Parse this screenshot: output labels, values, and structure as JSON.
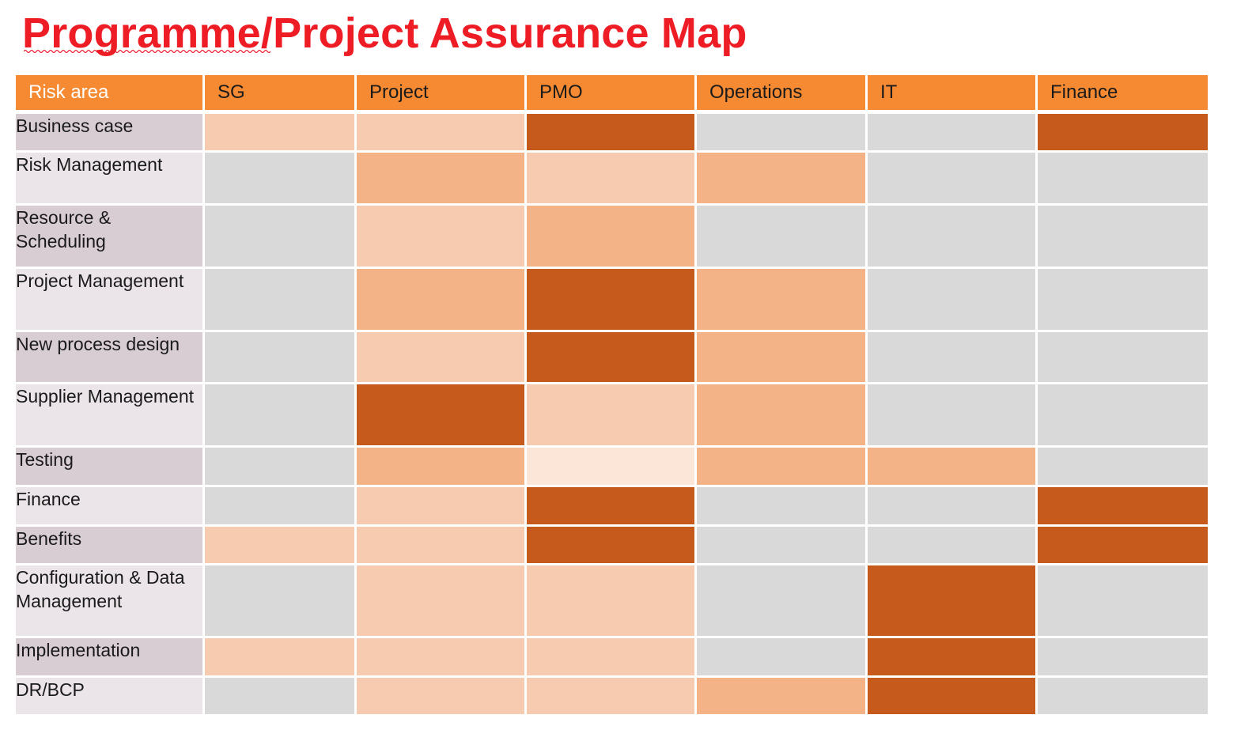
{
  "title": "Programme/Project Assurance Map",
  "header": {
    "risk_area": "Risk area",
    "columns": [
      "SG",
      "Project",
      "PMO",
      "Operations",
      "IT",
      "Finance"
    ]
  },
  "legend_colors": {
    "none": "#d9d9d9",
    "very_light": "#fbe6d7",
    "light": "#f7cbaf",
    "medium": "#f4b386",
    "strong": "#c55a1c"
  },
  "rows": [
    {
      "label": "Business case",
      "levels": [
        2,
        2,
        4,
        0,
        0,
        4
      ]
    },
    {
      "label": "Risk Management",
      "levels": [
        0,
        3,
        2,
        3,
        0,
        0
      ]
    },
    {
      "label": "Resource & Scheduling",
      "levels": [
        0,
        2,
        3,
        0,
        0,
        0
      ]
    },
    {
      "label": "Project Management",
      "levels": [
        0,
        3,
        4,
        3,
        0,
        0
      ]
    },
    {
      "label": "New process design",
      "levels": [
        0,
        2,
        4,
        3,
        0,
        0
      ]
    },
    {
      "label": "Supplier Management",
      "levels": [
        0,
        4,
        2,
        3,
        0,
        0
      ]
    },
    {
      "label": "Testing",
      "levels": [
        0,
        3,
        1,
        3,
        3,
        0
      ]
    },
    {
      "label": "Finance",
      "levels": [
        0,
        2,
        4,
        0,
        0,
        4
      ]
    },
    {
      "label": "Benefits",
      "levels": [
        2,
        2,
        4,
        0,
        0,
        4
      ]
    },
    {
      "label": "Configuration & Data Management",
      "levels": [
        0,
        2,
        2,
        0,
        4,
        0
      ]
    },
    {
      "label": "Implementation",
      "levels": [
        2,
        2,
        2,
        0,
        4,
        0
      ]
    },
    {
      "label": "DR/BCP",
      "levels": [
        0,
        2,
        2,
        3,
        4,
        0
      ]
    }
  ]
}
